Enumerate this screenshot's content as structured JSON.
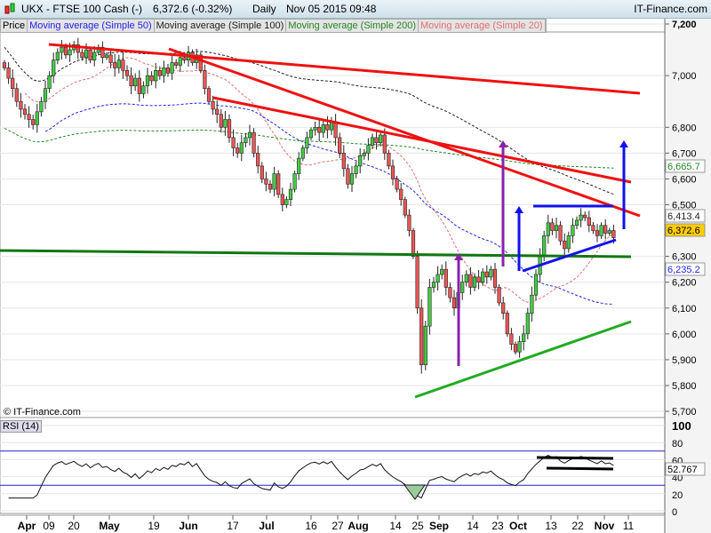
{
  "header": {
    "symbol": "UKX - FTSE 100 Cash (-)",
    "quote": "6,372.6 (-0.32%)",
    "period": "Daily",
    "datetime": "Nov 05 2015 09:48",
    "brand": "IT-Finance.com"
  },
  "legend": [
    {
      "label": "Price",
      "color": "#000000"
    },
    {
      "label": "Moving average (Simple 50)",
      "color": "#2222ee"
    },
    {
      "label": "Moving average (Simple 100)",
      "color": "#222222"
    },
    {
      "label": "Moving average (Simple 200)",
      "color": "#228822"
    },
    {
      "label": "Moving average (Simple 20)",
      "color": "#e07070"
    }
  ],
  "watermark": "© IT-Finance.com",
  "rsi_label": "RSI (14)",
  "chart_data": {
    "type": "candlestick",
    "title": "UKX - FTSE 100 Cash (-)",
    "ylim": [
      5700,
      7200
    ],
    "y_ticks": [
      "7,200",
      "7,000",
      "6,800",
      "6,700",
      "6,600",
      "6,500",
      "6,300",
      "6,200",
      "6,100",
      "6,000",
      "5,900",
      "5,800",
      "5,700"
    ],
    "x_ticks": [
      "Apr",
      "09",
      "20",
      "May",
      "19",
      "Jun",
      "17",
      "Jul",
      "16",
      "27",
      "Aug",
      "14",
      "25",
      "Sep",
      "14",
      "23",
      "Oct",
      "13",
      "22",
      "Nov",
      "11"
    ],
    "closes": [
      7030,
      6990,
      6950,
      6900,
      6870,
      6850,
      6830,
      6810,
      6860,
      6900,
      6950,
      7000,
      7060,
      7090,
      7110,
      7080,
      7100,
      7120,
      7090,
      7070,
      7100,
      7060,
      7090,
      7110,
      7070,
      7080,
      7050,
      7030,
      7060,
      7020,
      7000,
      6960,
      6990,
      6930,
      6960,
      7000,
      6980,
      7020,
      7000,
      7030,
      7010,
      7050,
      7040,
      7070,
      7060,
      7090,
      7050,
      7080,
      7020,
      6950,
      6900,
      6870,
      6850,
      6800,
      6830,
      6760,
      6720,
      6700,
      6740,
      6760,
      6780,
      6700,
      6650,
      6600,
      6580,
      6560,
      6620,
      6540,
      6500,
      6520,
      6560,
      6620,
      6680,
      6720,
      6760,
      6790,
      6800,
      6780,
      6810,
      6790,
      6820,
      6760,
      6700,
      6640,
      6580,
      6620,
      6650,
      6690,
      6700,
      6730,
      6760,
      6740,
      6770,
      6700,
      6650,
      6600,
      6560,
      6520,
      6460,
      6400,
      6300,
      6100,
      5880,
      6030,
      6180,
      6200,
      6230,
      6250,
      6180,
      6140,
      6100,
      6160,
      6200,
      6230,
      6180,
      6220,
      6200,
      6240,
      6220,
      6250,
      6180,
      6120,
      6080,
      6000,
      5960,
      5930,
      5970,
      6000,
      6080,
      6150,
      6230,
      6300,
      6380,
      6430,
      6400,
      6420,
      6360,
      6330,
      6380,
      6420,
      6440,
      6460,
      6450,
      6420,
      6400,
      6380,
      6420,
      6390,
      6400,
      6372.6
    ],
    "last_price": "6,372.6",
    "last_price_color": "#ffcc00",
    "ma_values": [
      {
        "name": "Moving average (Simple 100)",
        "value": "6,413.4",
        "color": "#222222"
      },
      {
        "name": "Moving average (Simple 200)",
        "value": "6,665.7",
        "color": "#228822"
      },
      {
        "name": "Moving average (Simple 50)",
        "value": "6,235.2",
        "color": "#2222ee"
      }
    ],
    "rsi": {
      "period": 14,
      "ylim": [
        0,
        100
      ],
      "y_ticks": [
        "100",
        "80",
        "60",
        "40",
        "20",
        "0"
      ],
      "levels": [
        30,
        70
      ],
      "last": "52.767"
    }
  }
}
